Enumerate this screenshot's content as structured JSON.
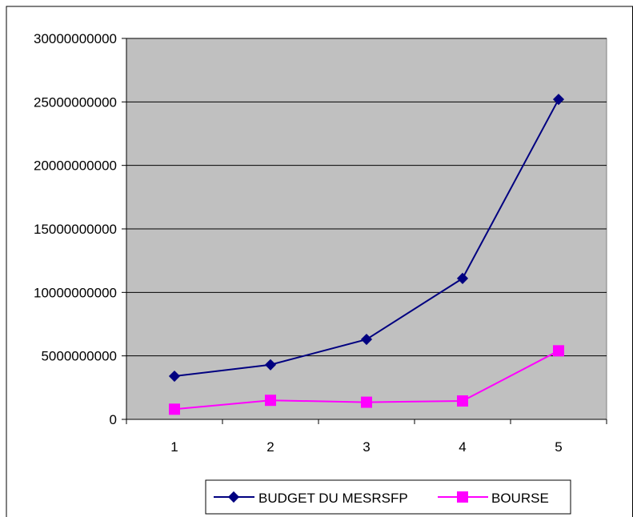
{
  "chart_data": {
    "type": "line",
    "title": "",
    "xlabel": "",
    "ylabel": "",
    "categories": [
      "1",
      "2",
      "3",
      "4",
      "5"
    ],
    "ylim": [
      0,
      30000000000
    ],
    "yticks": [
      "0",
      "5000000000",
      "10000000000",
      "15000000000",
      "20000000000",
      "25000000000",
      "30000000000"
    ],
    "grid": true,
    "legend_position": "bottom",
    "plot_background": "#c0c0c0",
    "series": [
      {
        "name": "BUDGET DU MESRSFP",
        "values": [
          3400000000,
          4300000000,
          6300000000,
          11100000000,
          25200000000
        ],
        "color": "#000080",
        "marker": "diamond"
      },
      {
        "name": "BOURSE",
        "values": [
          800000000,
          1500000000,
          1350000000,
          1450000000,
          5400000000
        ],
        "color": "#ff00ff",
        "marker": "square"
      }
    ]
  }
}
